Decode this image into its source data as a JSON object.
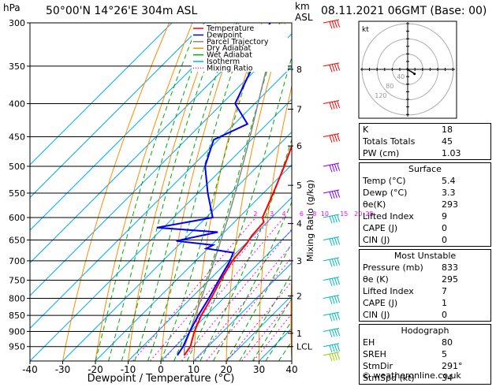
{
  "header": {
    "hpa_label": "hPa",
    "location": "50°00'N  14°26'E  304m  ASL",
    "km_label": "km",
    "asl_label": "ASL",
    "datetime": "08.11.2021  06GMT  (Base: 00)"
  },
  "legend": {
    "items": [
      {
        "label": "Temperature",
        "color": "#ff0000",
        "style": "solid"
      },
      {
        "label": "Dewpoint",
        "color": "#0000ff",
        "style": "solid"
      },
      {
        "label": "Parcel Trajectory",
        "color": "#888888",
        "style": "solid"
      },
      {
        "label": "Dry Adiabat",
        "color": "#ff8c00",
        "style": "solid"
      },
      {
        "label": "Wet Adiabat",
        "color": "#00aa00",
        "style": "solid"
      },
      {
        "label": "Isotherm",
        "color": "#00aaff",
        "style": "solid"
      },
      {
        "label": "Mixing Ratio",
        "color": "#ff00ff",
        "style": "dotted"
      }
    ]
  },
  "colors": {
    "temperature": "#ff0000",
    "dewpoint": "#0000ff",
    "parcel": "#888888",
    "dry_adiabat": "#ff8c00",
    "wet_adiabat": "#00aa00",
    "isotherm": "#00aaff",
    "mixing_ratio": "#ff00ff"
  },
  "chart_data": {
    "type": "skew-t",
    "xlabel": "Dewpoint / Temperature (°C)",
    "ylabel": "Mixing Ratio (g/kg)",
    "xlim": [
      -40,
      40
    ],
    "ylim_hpa": [
      1000,
      300
    ],
    "pressure_ticks": [
      300,
      350,
      400,
      450,
      500,
      550,
      600,
      650,
      700,
      750,
      800,
      850,
      900,
      950
    ],
    "temperature_ticks": [
      -40,
      -30,
      -20,
      -10,
      0,
      10,
      20,
      30,
      40
    ],
    "height_ticks": [
      {
        "label": "8",
        "hpa": 354
      },
      {
        "label": "7",
        "hpa": 408
      },
      {
        "label": "6",
        "hpa": 465
      },
      {
        "label": "5",
        "hpa": 535
      },
      {
        "label": "4",
        "hpa": 613
      },
      {
        "label": "3",
        "hpa": 700
      },
      {
        "label": "2",
        "hpa": 793
      },
      {
        "label": "1",
        "hpa": 906
      },
      {
        "label": "LCL",
        "hpa": 950
      }
    ],
    "mixing_ratio_labels": [
      {
        "label": "2",
        "g_kg": 2
      },
      {
        "label": "3",
        "g_kg": 3
      },
      {
        "label": "4",
        "g_kg": 4
      },
      {
        "label": "6",
        "g_kg": 6
      },
      {
        "label": "8",
        "g_kg": 8
      },
      {
        "label": "10",
        "g_kg": 10
      },
      {
        "label": "15",
        "g_kg": 15
      },
      {
        "label": "20",
        "g_kg": 20
      },
      {
        "label": "25",
        "g_kg": 25
      }
    ],
    "temperature_profile": [
      {
        "p": 980,
        "t": 5.4
      },
      {
        "p": 950,
        "t": 4.6
      },
      {
        "p": 900,
        "t": 1.2
      },
      {
        "p": 850,
        "t": -1.6
      },
      {
        "p": 800,
        "t": -3.8
      },
      {
        "p": 750,
        "t": -6.4
      },
      {
        "p": 700,
        "t": -8.8
      },
      {
        "p": 660,
        "t": -9.6
      },
      {
        "p": 640,
        "t": -10.5
      },
      {
        "p": 610,
        "t": -11.0
      },
      {
        "p": 600,
        "t": -12.8
      },
      {
        "p": 550,
        "t": -17.0
      },
      {
        "p": 500,
        "t": -21.8
      },
      {
        "p": 450,
        "t": -27.5
      },
      {
        "p": 400,
        "t": -34.5
      },
      {
        "p": 350,
        "t": -41.0
      },
      {
        "p": 300,
        "t": -48.5
      }
    ],
    "dewpoint_profile": [
      {
        "p": 980,
        "t": 3.3
      },
      {
        "p": 950,
        "t": 2.4
      },
      {
        "p": 900,
        "t": -0.2
      },
      {
        "p": 850,
        "t": -2.5
      },
      {
        "p": 800,
        "t": -4.5
      },
      {
        "p": 750,
        "t": -7.0
      },
      {
        "p": 700,
        "t": -9.5
      },
      {
        "p": 680,
        "t": -11.0
      },
      {
        "p": 670,
        "t": -20.5
      },
      {
        "p": 662,
        "t": -19.5
      },
      {
        "p": 652,
        "t": -32.0
      },
      {
        "p": 632,
        "t": -22.0
      },
      {
        "p": 622,
        "t": -42.0
      },
      {
        "p": 600,
        "t": -28.0
      },
      {
        "p": 550,
        "t": -37.0
      },
      {
        "p": 500,
        "t": -46.0
      },
      {
        "p": 455,
        "t": -51.5
      },
      {
        "p": 430,
        "t": -46.0
      },
      {
        "p": 400,
        "t": -56.0
      },
      {
        "p": 350,
        "t": -62.0
      },
      {
        "p": 300,
        "t": -70.0
      }
    ],
    "parcel_profile": [
      {
        "p": 980,
        "t": 5.4
      },
      {
        "p": 950,
        "t": 2.8
      },
      {
        "p": 900,
        "t": -0.2
      },
      {
        "p": 850,
        "t": -3.4
      },
      {
        "p": 800,
        "t": -6.8
      },
      {
        "p": 750,
        "t": -10.4
      },
      {
        "p": 700,
        "t": -14.3
      },
      {
        "p": 650,
        "t": -18.6
      },
      {
        "p": 600,
        "t": -23.3
      },
      {
        "p": 550,
        "t": -28.6
      },
      {
        "p": 500,
        "t": -34.6
      },
      {
        "p": 450,
        "t": -41.3
      },
      {
        "p": 400,
        "t": -49.0
      },
      {
        "p": 350,
        "t": -57.7
      },
      {
        "p": 300,
        "t": -67.0
      }
    ],
    "wind_barbs": [
      {
        "p": 300,
        "color": "#ff0000"
      },
      {
        "p": 350,
        "color": "#ff0000"
      },
      {
        "p": 400,
        "color": "#ff0000"
      },
      {
        "p": 450,
        "color": "#ff0000"
      },
      {
        "p": 500,
        "color": "#8000ff"
      },
      {
        "p": 550,
        "color": "#8000ff"
      },
      {
        "p": 600,
        "color": "#00bbbb"
      },
      {
        "p": 650,
        "color": "#00bbbb"
      },
      {
        "p": 700,
        "color": "#00bbbb"
      },
      {
        "p": 750,
        "color": "#00bbbb"
      },
      {
        "p": 800,
        "color": "#00bbbb"
      },
      {
        "p": 850,
        "color": "#00bbbb"
      },
      {
        "p": 900,
        "color": "#00bbbb"
      },
      {
        "p": 950,
        "color": "#00bbbb"
      },
      {
        "p": 980,
        "color": "#99cc00"
      }
    ]
  },
  "hodograph": {
    "title": "kt",
    "rings": [
      {
        "label": "40",
        "kt": 40
      },
      {
        "label": "80",
        "kt": 80
      },
      {
        "label": "120",
        "kt": 120
      }
    ],
    "trace": [
      {
        "u": 0,
        "v": 0
      },
      {
        "u": 4,
        "v": -3
      },
      {
        "u": 9,
        "v": -6
      },
      {
        "u": 14,
        "v": -9
      },
      {
        "u": 18,
        "v": -12
      }
    ]
  },
  "indices": [
    {
      "label": "K",
      "value": "18"
    },
    {
      "label": "Totals Totals",
      "value": "45"
    },
    {
      "label": "PW (cm)",
      "value": "1.03"
    }
  ],
  "surface": {
    "title": "Surface",
    "rows": [
      {
        "label": "Temp (°C)",
        "value": "5.4"
      },
      {
        "label": "Dewp (°C)",
        "value": "3.3"
      },
      {
        "label": "θe(K)",
        "value": "293"
      },
      {
        "label": "Lifted Index",
        "value": "9"
      },
      {
        "label": "CAPE (J)",
        "value": "0"
      },
      {
        "label": "CIN (J)",
        "value": "0"
      }
    ]
  },
  "most_unstable": {
    "title": "Most Unstable",
    "rows": [
      {
        "label": "Pressure (mb)",
        "value": "833"
      },
      {
        "label": "θe (K)",
        "value": "295"
      },
      {
        "label": "Lifted Index",
        "value": "7"
      },
      {
        "label": "CAPE (J)",
        "value": "1"
      },
      {
        "label": "CIN (J)",
        "value": "0"
      }
    ]
  },
  "hodograph_params": {
    "title": "Hodograph",
    "rows": [
      {
        "label": "EH",
        "value": "80"
      },
      {
        "label": "SREH",
        "value": "5"
      },
      {
        "label": "StmDir",
        "value": "291°"
      },
      {
        "label": "StmSpd (kt)",
        "value": "34"
      }
    ]
  },
  "copyright": "© weatheronline.co.uk"
}
